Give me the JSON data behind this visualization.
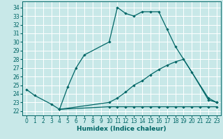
{
  "xlabel": "Humidex (Indice chaleur)",
  "bg_color": "#c8e8e8",
  "grid_color": "#ffffff",
  "line_color": "#006666",
  "xlim": [
    -0.5,
    23.5
  ],
  "ylim": [
    21.5,
    34.7
  ],
  "xticks": [
    0,
    1,
    2,
    3,
    4,
    5,
    6,
    7,
    8,
    9,
    10,
    11,
    12,
    13,
    14,
    15,
    16,
    17,
    18,
    19,
    20,
    21,
    22,
    23
  ],
  "yticks": [
    22,
    23,
    24,
    25,
    26,
    27,
    28,
    29,
    30,
    31,
    32,
    33,
    34
  ],
  "series": [
    {
      "x": [
        0,
        1,
        3,
        4,
        5,
        6,
        7,
        10,
        11,
        12,
        13,
        14,
        15,
        16,
        17,
        18,
        22,
        23
      ],
      "y": [
        24.5,
        23.8,
        22.8,
        22.2,
        24.8,
        27.0,
        28.5,
        30.0,
        34.0,
        33.3,
        33.0,
        33.5,
        33.5,
        33.5,
        31.5,
        29.5,
        23.5,
        23.0
      ]
    },
    {
      "x": [
        4,
        10,
        11,
        12,
        13,
        14,
        15,
        16,
        17,
        18,
        19,
        20,
        21,
        22,
        23
      ],
      "y": [
        22.2,
        22.5,
        22.5,
        22.5,
        22.5,
        22.5,
        22.5,
        22.5,
        22.5,
        22.5,
        22.5,
        22.5,
        22.5,
        22.5,
        22.5
      ]
    },
    {
      "x": [
        4,
        10,
        11,
        12,
        13,
        14,
        15,
        16,
        17,
        18,
        19,
        20,
        22,
        23
      ],
      "y": [
        22.2,
        23.0,
        23.5,
        24.2,
        25.0,
        25.5,
        26.2,
        26.8,
        27.3,
        27.7,
        28.0,
        26.5,
        23.3,
        23.0
      ]
    }
  ]
}
